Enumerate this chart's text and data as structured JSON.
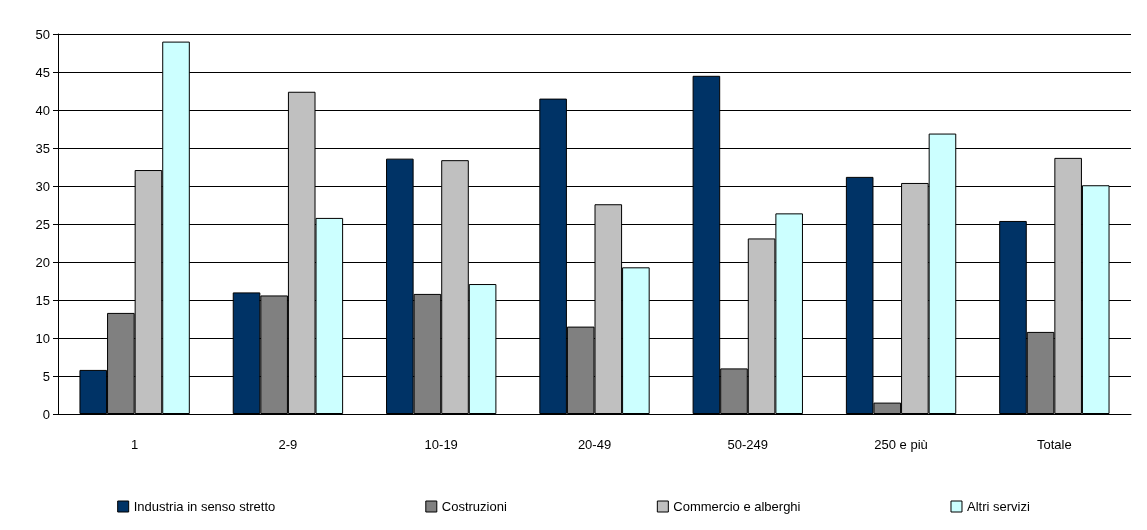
{
  "chart_data": {
    "type": "bar",
    "categories": [
      "1",
      "2-9",
      "10-19",
      "20-49",
      "50-249",
      "250 e più",
      "Totale"
    ],
    "series": [
      {
        "name": "Industria in senso stretto",
        "color": "#003366",
        "values": [
          5.8,
          16.0,
          33.6,
          41.5,
          44.5,
          31.2,
          25.4
        ]
      },
      {
        "name": "Costruzioni",
        "color": "#808080",
        "values": [
          13.3,
          15.6,
          15.8,
          11.5,
          6.0,
          1.5,
          10.8
        ]
      },
      {
        "name": "Commercio e alberghi",
        "color": "#c0c0c0",
        "values": [
          32.1,
          42.4,
          33.4,
          27.6,
          23.1,
          30.4,
          33.7
        ]
      },
      {
        "name": "Altri servizi",
        "color": "#ccffff",
        "values": [
          49.0,
          25.8,
          17.1,
          19.3,
          26.4,
          36.9,
          30.1
        ]
      }
    ],
    "ylim": [
      0,
      50
    ],
    "yticks": [
      0,
      5,
      10,
      15,
      20,
      25,
      30,
      35,
      40,
      45,
      50
    ],
    "grid": "y",
    "legend": "bottom"
  }
}
